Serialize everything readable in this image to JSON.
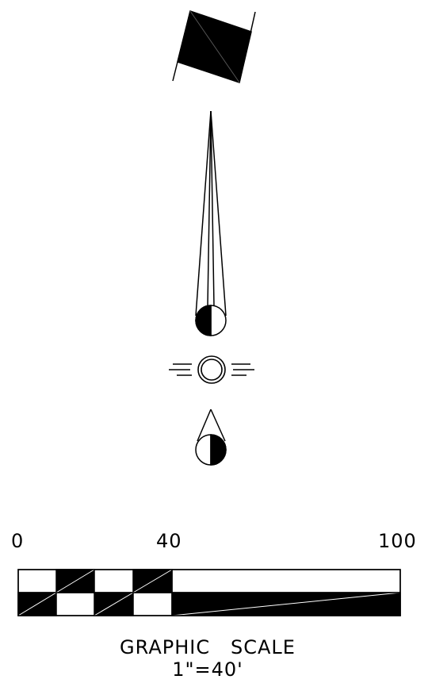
{
  "symbols": {
    "north_arrow_icon": "north-arrow-icon",
    "sun_icon": "sun-icon",
    "moon_icon": "half-moon-icon",
    "wind_icon": "wind-icon"
  },
  "scale": {
    "tick_labels": [
      "0",
      "40",
      "100"
    ],
    "title": "GRAPHIC   SCALE",
    "ratio": "1\"=40'"
  },
  "colors": {
    "ink": "#000000",
    "paper": "#ffffff"
  }
}
